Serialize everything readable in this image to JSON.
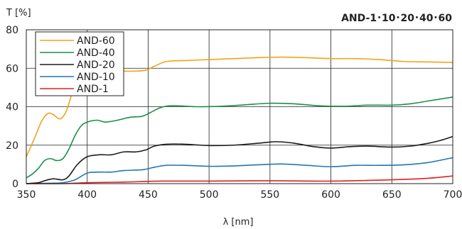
{
  "chart_data": {
    "type": "line",
    "title": "AND-1･10･20･40･60",
    "xlabel": "λ [nm]",
    "ylabel": "T [%]",
    "xlim": [
      350,
      700
    ],
    "ylim": [
      0,
      80
    ],
    "xticks": [
      350,
      400,
      450,
      500,
      550,
      600,
      650,
      700
    ],
    "yticks": [
      0,
      20,
      40,
      60,
      80
    ],
    "grid": true,
    "legend_position": "top-left",
    "series": [
      {
        "name": "AND-60",
        "color": "#f2a31b",
        "points": [
          [
            350,
            14
          ],
          [
            357,
            24
          ],
          [
            363,
            33
          ],
          [
            368,
            36.5
          ],
          [
            372,
            36
          ],
          [
            376,
            34
          ],
          [
            379,
            34
          ],
          [
            383,
            38
          ],
          [
            388,
            48
          ],
          [
            393,
            58
          ],
          [
            398,
            62
          ],
          [
            403,
            63
          ],
          [
            410,
            61
          ],
          [
            420,
            59
          ],
          [
            430,
            58.5
          ],
          [
            440,
            58.5
          ],
          [
            448,
            59
          ],
          [
            455,
            61
          ],
          [
            465,
            63.5
          ],
          [
            480,
            64
          ],
          [
            500,
            64.5
          ],
          [
            520,
            65
          ],
          [
            540,
            65.5
          ],
          [
            560,
            65.8
          ],
          [
            580,
            65.5
          ],
          [
            600,
            65
          ],
          [
            620,
            65
          ],
          [
            640,
            64.5
          ],
          [
            660,
            63.5
          ],
          [
            680,
            63.3
          ],
          [
            700,
            63
          ]
        ]
      },
      {
        "name": "AND-40",
        "color": "#1a8f4a",
        "points": [
          [
            350,
            3
          ],
          [
            355,
            5
          ],
          [
            360,
            8
          ],
          [
            365,
            12
          ],
          [
            370,
            13
          ],
          [
            375,
            12
          ],
          [
            380,
            13
          ],
          [
            385,
            18
          ],
          [
            390,
            25
          ],
          [
            395,
            30
          ],
          [
            400,
            32
          ],
          [
            408,
            33
          ],
          [
            415,
            32
          ],
          [
            425,
            33
          ],
          [
            435,
            34.5
          ],
          [
            445,
            35
          ],
          [
            452,
            37
          ],
          [
            460,
            39.5
          ],
          [
            470,
            40.5
          ],
          [
            490,
            40
          ],
          [
            510,
            40.2
          ],
          [
            530,
            41
          ],
          [
            550,
            41.8
          ],
          [
            570,
            41.5
          ],
          [
            590,
            40.5
          ],
          [
            610,
            40.2
          ],
          [
            630,
            40.8
          ],
          [
            650,
            40.8
          ],
          [
            665,
            41.5
          ],
          [
            680,
            43
          ],
          [
            700,
            45
          ]
        ]
      },
      {
        "name": "AND-20",
        "color": "#1c1c1c",
        "points": [
          [
            350,
            0
          ],
          [
            360,
            0.5
          ],
          [
            365,
            1.5
          ],
          [
            372,
            2.5
          ],
          [
            380,
            2
          ],
          [
            385,
            4
          ],
          [
            392,
            10
          ],
          [
            400,
            14
          ],
          [
            410,
            15
          ],
          [
            420,
            15
          ],
          [
            430,
            16.5
          ],
          [
            440,
            16.5
          ],
          [
            448,
            17.5
          ],
          [
            455,
            19.5
          ],
          [
            465,
            20.5
          ],
          [
            480,
            20.5
          ],
          [
            500,
            19.8
          ],
          [
            520,
            20
          ],
          [
            540,
            21
          ],
          [
            555,
            21.8
          ],
          [
            570,
            21
          ],
          [
            585,
            19.3
          ],
          [
            600,
            18.5
          ],
          [
            615,
            19.2
          ],
          [
            630,
            19.5
          ],
          [
            650,
            19
          ],
          [
            665,
            19.5
          ],
          [
            680,
            21
          ],
          [
            690,
            22.5
          ],
          [
            700,
            24.5
          ]
        ]
      },
      {
        "name": "AND-10",
        "color": "#1f77b4",
        "points": [
          [
            350,
            0
          ],
          [
            370,
            0.2
          ],
          [
            380,
            0.5
          ],
          [
            390,
            2
          ],
          [
            400,
            5.5
          ],
          [
            410,
            6
          ],
          [
            420,
            6
          ],
          [
            430,
            6.8
          ],
          [
            445,
            7.2
          ],
          [
            455,
            8.5
          ],
          [
            465,
            9.5
          ],
          [
            480,
            9.5
          ],
          [
            500,
            9
          ],
          [
            520,
            9.2
          ],
          [
            540,
            9.8
          ],
          [
            560,
            10.2
          ],
          [
            580,
            9.5
          ],
          [
            600,
            8.8
          ],
          [
            620,
            9.5
          ],
          [
            640,
            9.5
          ],
          [
            660,
            9.8
          ],
          [
            680,
            11
          ],
          [
            700,
            13.5
          ]
        ]
      },
      {
        "name": "AND-1",
        "color": "#e02020",
        "points": [
          [
            350,
            0
          ],
          [
            380,
            0
          ],
          [
            400,
            0.5
          ],
          [
            430,
            0.8
          ],
          [
            460,
            1.3
          ],
          [
            500,
            1.3
          ],
          [
            550,
            1.5
          ],
          [
            600,
            1.3
          ],
          [
            650,
            2
          ],
          [
            680,
            2.8
          ],
          [
            700,
            4
          ]
        ]
      }
    ]
  }
}
